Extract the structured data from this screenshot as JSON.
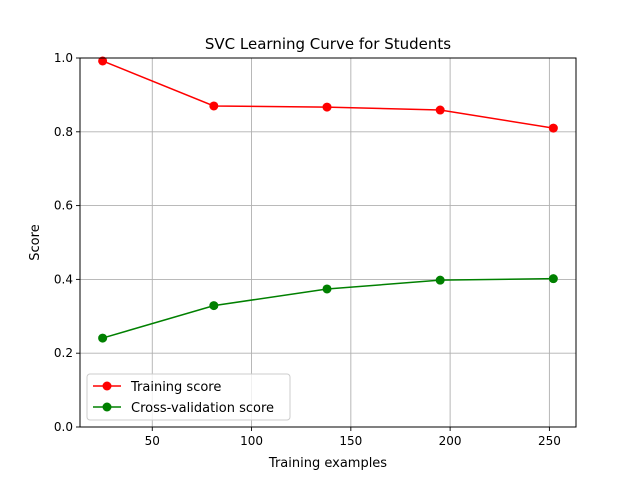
{
  "chart_data": {
    "type": "line",
    "title": "SVC Learning Curve for Students",
    "xlabel": "Training examples",
    "ylabel": "Score",
    "xlim": [
      13.6,
      263.4
    ],
    "ylim": [
      0.0,
      1.0
    ],
    "xticks": [
      50,
      100,
      150,
      200,
      250
    ],
    "xtick_labels": [
      "50",
      "100",
      "150",
      "200",
      "250"
    ],
    "yticks": [
      0.0,
      0.2,
      0.4,
      0.6,
      0.8,
      1.0
    ],
    "ytick_labels": [
      "0.0",
      "0.2",
      "0.4",
      "0.6",
      "0.8",
      "1.0"
    ],
    "grid": true,
    "legend_position": "lower left",
    "x": [
      25,
      81,
      138,
      195,
      252
    ],
    "series": [
      {
        "name": "Training score",
        "color": "#ff0000",
        "marker": "circle",
        "values": [
          0.992,
          0.87,
          0.867,
          0.859,
          0.81
        ]
      },
      {
        "name": "Cross-validation score",
        "color": "#008000",
        "marker": "circle",
        "values": [
          0.241,
          0.329,
          0.374,
          0.398,
          0.402
        ]
      }
    ]
  }
}
